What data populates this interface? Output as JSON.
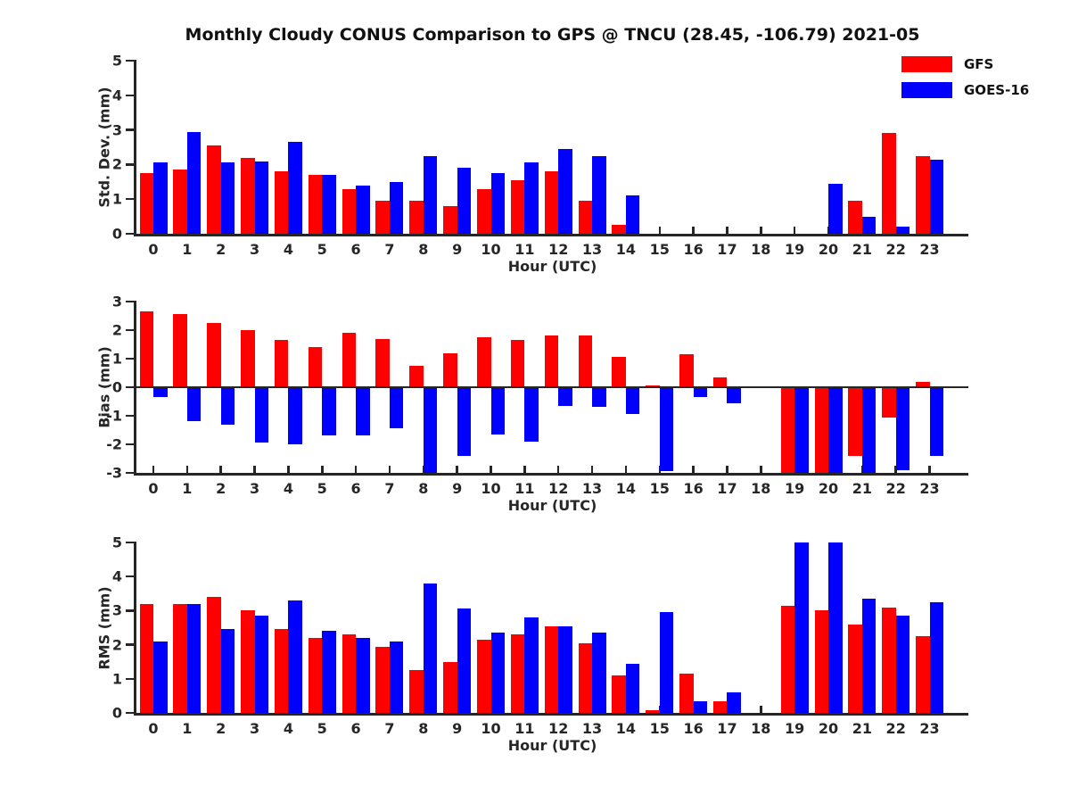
{
  "title": "Monthly Cloudy CONUS Comparison to GPS @ TNCU (28.45, -106.79) 2021-05",
  "legend": {
    "position": "top-right",
    "items": [
      {
        "label": "GFS",
        "color": "#ff0000"
      },
      {
        "label": "GOES-16",
        "color": "#0000ff"
      }
    ]
  },
  "colors": {
    "gfs": "#ff0000",
    "goes16": "#0000ff",
    "axis": "#262626",
    "background": "#ffffff"
  },
  "chart_data": [
    {
      "type": "bar",
      "title": "",
      "ylabel": "Std. Dev. (mm)",
      "xlabel": "Hour (UTC)",
      "ylim": [
        0,
        5
      ],
      "yticks": [
        0,
        1,
        2,
        3,
        4,
        5
      ],
      "grid": false,
      "categories": [
        0,
        1,
        2,
        3,
        4,
        5,
        6,
        7,
        8,
        9,
        10,
        11,
        12,
        13,
        14,
        15,
        16,
        17,
        18,
        19,
        20,
        21,
        22,
        23
      ],
      "series": [
        {
          "name": "GFS",
          "color": "#ff0000",
          "values": [
            1.75,
            1.85,
            2.55,
            2.2,
            1.8,
            1.7,
            1.3,
            0.95,
            0.95,
            0.8,
            1.3,
            1.55,
            1.8,
            0.95,
            0.25,
            null,
            null,
            null,
            null,
            null,
            null,
            0.95,
            2.9,
            2.25
          ]
        },
        {
          "name": "GOES-16",
          "color": "#0000ff",
          "values": [
            2.05,
            2.95,
            2.05,
            2.1,
            2.65,
            1.7,
            1.4,
            1.5,
            2.25,
            1.9,
            1.75,
            2.05,
            2.45,
            2.25,
            1.1,
            null,
            null,
            null,
            null,
            null,
            1.45,
            0.5,
            0.2,
            2.15
          ]
        }
      ]
    },
    {
      "type": "bar",
      "title": "",
      "ylabel": "Bias (mm)",
      "xlabel": "Hour (UTC)",
      "ylim": [
        -3,
        3
      ],
      "yticks": [
        3,
        2,
        1,
        0,
        -1,
        -2,
        -3
      ],
      "grid": false,
      "baseline": 0,
      "categories": [
        0,
        1,
        2,
        3,
        4,
        5,
        6,
        7,
        8,
        9,
        10,
        11,
        12,
        13,
        14,
        15,
        16,
        17,
        18,
        19,
        20,
        21,
        22,
        23
      ],
      "series": [
        {
          "name": "GFS",
          "color": "#ff0000",
          "values": [
            2.65,
            2.55,
            2.25,
            2.0,
            1.65,
            1.4,
            1.9,
            1.7,
            0.75,
            1.2,
            1.75,
            1.65,
            1.8,
            1.8,
            1.05,
            0.05,
            1.15,
            0.35,
            null,
            -3.0,
            -3.0,
            -2.4,
            -1.05,
            0.2
          ]
        },
        {
          "name": "GOES-16",
          "color": "#0000ff",
          "values": [
            -0.35,
            -1.2,
            -1.3,
            -1.95,
            -2.0,
            -1.7,
            -1.7,
            -1.45,
            -3.0,
            -2.4,
            -1.65,
            -1.9,
            -0.65,
            -0.7,
            -0.95,
            -2.95,
            -0.35,
            -0.55,
            null,
            -3.0,
            -3.0,
            -3.0,
            -2.9,
            -2.4
          ]
        }
      ]
    },
    {
      "type": "bar",
      "title": "",
      "ylabel": "RMS (mm)",
      "xlabel": "Hour (UTC)",
      "ylim": [
        0,
        5
      ],
      "yticks": [
        0,
        1,
        2,
        3,
        4,
        5
      ],
      "grid": false,
      "categories": [
        0,
        1,
        2,
        3,
        4,
        5,
        6,
        7,
        8,
        9,
        10,
        11,
        12,
        13,
        14,
        15,
        16,
        17,
        18,
        19,
        20,
        21,
        22,
        23
      ],
      "series": [
        {
          "name": "GFS",
          "color": "#ff0000",
          "values": [
            3.2,
            3.2,
            3.4,
            3.0,
            2.45,
            2.2,
            2.3,
            1.95,
            1.25,
            1.5,
            2.15,
            2.3,
            2.55,
            2.05,
            1.1,
            0.07,
            1.15,
            0.35,
            null,
            3.15,
            3.0,
            2.6,
            3.1,
            2.25
          ]
        },
        {
          "name": "GOES-16",
          "color": "#0000ff",
          "values": [
            2.1,
            3.2,
            2.45,
            2.85,
            3.3,
            2.4,
            2.2,
            2.1,
            3.8,
            3.05,
            2.35,
            2.8,
            2.55,
            2.35,
            1.45,
            2.95,
            0.35,
            0.6,
            null,
            5.0,
            5.0,
            3.35,
            2.85,
            3.25
          ]
        }
      ]
    }
  ]
}
